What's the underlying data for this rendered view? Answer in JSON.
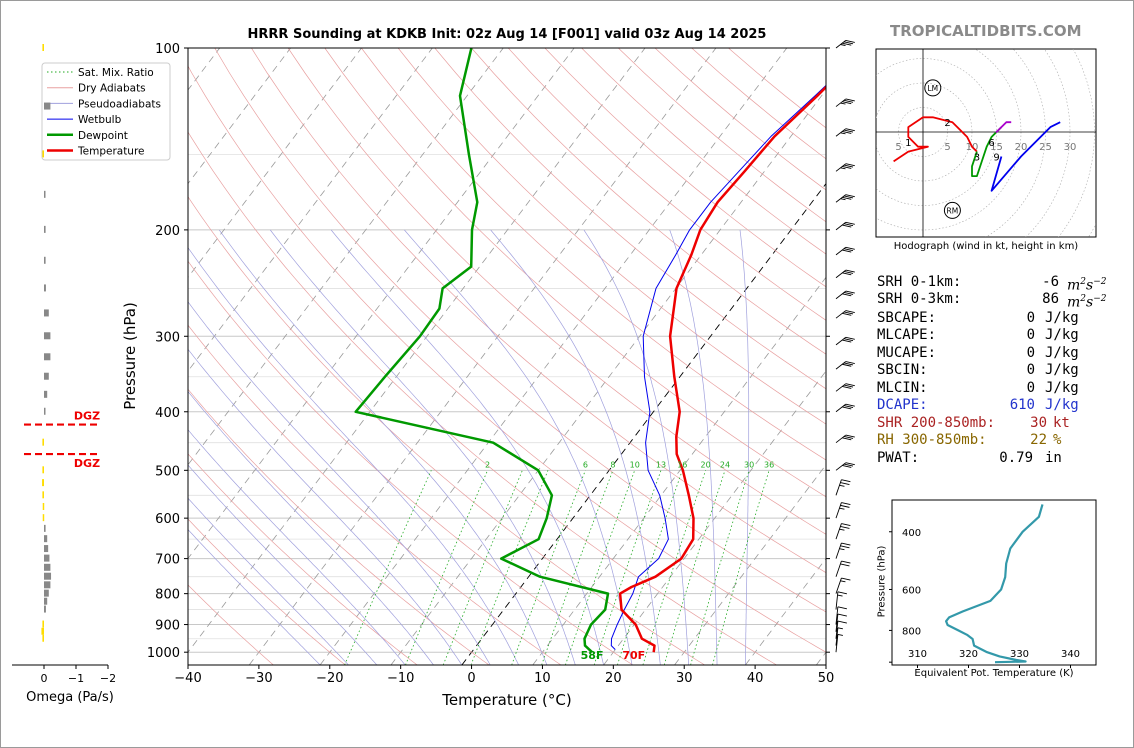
{
  "brand": "TROPICALTIDBITS.COM",
  "chart_data": [
    {
      "type": "line",
      "subtype": "skew-t",
      "title": "HRRR Sounding at KDKB Init: 02z Aug 14 [F001] valid 03z Aug 14 2025",
      "xlabel": "Temperature (°C)",
      "ylabel": "Pressure (hPa)",
      "xlim": [
        -40,
        50
      ],
      "ylim": [
        1050,
        100
      ],
      "y_scale": "log",
      "x_ticks": [
        "−40",
        "−30",
        "−20",
        "−10",
        "0",
        "10",
        "20",
        "30",
        "40",
        "50"
      ],
      "y_ticks": [
        "100",
        "200",
        "300",
        "400",
        "500",
        "600",
        "700",
        "800",
        "900",
        "1000"
      ],
      "y_tick_values": [
        100,
        200,
        300,
        400,
        500,
        600,
        700,
        800,
        900,
        1000
      ],
      "legend_position": "top-left",
      "legend": [
        "Sat. Mix. Ratio",
        "Dry Adiabats",
        "Pseudoadiabats",
        "Wetbulb",
        "Dewpoint",
        "Temperature"
      ],
      "mixing_ratio_labels": [
        "2",
        "6",
        "8",
        "10",
        "13",
        "16",
        "20",
        "24",
        "30",
        "36"
      ],
      "mixing_ratio_values": [
        2,
        6,
        8,
        10,
        13,
        16,
        20,
        24,
        30,
        36
      ],
      "surface_labels": {
        "dewpoint": "58F",
        "temperature": "70F"
      },
      "series": [
        {
          "name": "Temperature",
          "color": "#ee0000",
          "points": [
            [
              1000,
              25.7
            ],
            [
              975,
              25.1
            ],
            [
              950,
              22.6
            ],
            [
              900,
              20.2
            ],
            [
              850,
              16.6
            ],
            [
              800,
              14.7
            ],
            [
              780,
              15.6
            ],
            [
              750,
              17.9
            ],
            [
              700,
              19.6
            ],
            [
              650,
              19.2
            ],
            [
              600,
              17.0
            ],
            [
              550,
              13.9
            ],
            [
              500,
              10.4
            ],
            [
              470,
              7.8
            ],
            [
              440,
              5.9
            ],
            [
              400,
              3.7
            ],
            [
              350,
              -0.8
            ],
            [
              300,
              -5.7
            ],
            [
              250,
              -9.9
            ],
            [
              220,
              -11.4
            ],
            [
              200,
              -12.8
            ],
            [
              180,
              -13.3
            ],
            [
              160,
              -12.8
            ],
            [
              140,
              -12.3
            ],
            [
              120,
              -10.6
            ],
            [
              100,
              -8.9
            ]
          ]
        },
        {
          "name": "Dewpoint",
          "color": "#009900",
          "points": [
            [
              1000,
              17.0
            ],
            [
              975,
              15.3
            ],
            [
              950,
              14.5
            ],
            [
              900,
              13.9
            ],
            [
              850,
              14.3
            ],
            [
              800,
              13.0
            ],
            [
              750,
              1.6
            ],
            [
              700,
              -5.8
            ],
            [
              650,
              -2.6
            ],
            [
              600,
              -3.7
            ],
            [
              550,
              -5.4
            ],
            [
              500,
              -10.0
            ],
            [
              450,
              -19.3
            ],
            [
              400,
              -42.0
            ],
            [
              350,
              -41.6
            ],
            [
              300,
              -41.0
            ],
            [
              270,
              -41.2
            ],
            [
              250,
              -42.9
            ],
            [
              230,
              -41.2
            ],
            [
              200,
              -45.0
            ],
            [
              180,
              -47.2
            ],
            [
              150,
              -53.5
            ],
            [
              120,
              -61.0
            ],
            [
              100,
              -64.5
            ]
          ]
        },
        {
          "name": "Wetbulb",
          "color": "#0000ee",
          "points": [
            [
              990,
              20.0
            ],
            [
              975,
              19.0
            ],
            [
              950,
              18.3
            ],
            [
              900,
              17.6
            ],
            [
              850,
              17.0
            ],
            [
              800,
              16.5
            ],
            [
              750,
              15.5
            ],
            [
              700,
              16.4
            ],
            [
              650,
              15.7
            ],
            [
              600,
              13.0
            ],
            [
              550,
              9.8
            ],
            [
              500,
              5.5
            ],
            [
              450,
              2.2
            ],
            [
              400,
              -0.5
            ],
            [
              350,
              -5.0
            ],
            [
              300,
              -9.5
            ],
            [
              250,
              -12.8
            ],
            [
              220,
              -13.6
            ],
            [
              200,
              -14.3
            ],
            [
              180,
              -14.3
            ],
            [
              160,
              -13.6
            ],
            [
              140,
              -12.8
            ],
            [
              120,
              -10.9
            ],
            [
              100,
              -8.9
            ]
          ]
        }
      ],
      "wind_barbs_kt": [
        [
          1000,
          5
        ],
        [
          975,
          5
        ],
        [
          950,
          10
        ],
        [
          925,
          10
        ],
        [
          900,
          10
        ],
        [
          850,
          15
        ],
        [
          800,
          15
        ],
        [
          750,
          20
        ],
        [
          700,
          25
        ],
        [
          650,
          25
        ],
        [
          600,
          25
        ],
        [
          550,
          25
        ],
        [
          500,
          30
        ],
        [
          450,
          30
        ],
        [
          400,
          30
        ],
        [
          370,
          30
        ],
        [
          340,
          30
        ],
        [
          310,
          30
        ],
        [
          280,
          30
        ],
        [
          260,
          30
        ],
        [
          240,
          30
        ],
        [
          220,
          30
        ],
        [
          200,
          30
        ],
        [
          180,
          35
        ],
        [
          160,
          35
        ],
        [
          140,
          35
        ],
        [
          125,
          35
        ],
        [
          100,
          35
        ]
      ]
    },
    {
      "type": "bar",
      "subtype": "omega-profile",
      "xlabel": "Omega (Pa/s)",
      "xlim": [
        1,
        -2
      ],
      "x_ticks": [
        "0",
        "−1",
        "−2"
      ],
      "dgz_label": "DGZ",
      "dgz_pressures_hpa": [
        420,
        470
      ],
      "bars": [
        {
          "p": 100,
          "v": 0.05
        },
        {
          "p": 125,
          "v": -0.2
        },
        {
          "p": 150,
          "v": 0.05
        },
        {
          "p": 175,
          "v": -0.02
        },
        {
          "p": 200,
          "v": -0.05
        },
        {
          "p": 225,
          "v": -0.05
        },
        {
          "p": 250,
          "v": -0.06
        },
        {
          "p": 275,
          "v": -0.15
        },
        {
          "p": 300,
          "v": -0.2
        },
        {
          "p": 325,
          "v": -0.2
        },
        {
          "p": 350,
          "v": -0.15
        },
        {
          "p": 375,
          "v": -0.1
        },
        {
          "p": 400,
          "v": -0.03
        },
        {
          "p": 450,
          "v": 0.05
        },
        {
          "p": 500,
          "v": 0.05
        },
        {
          "p": 525,
          "v": 0.06
        },
        {
          "p": 550,
          "v": 0.05
        },
        {
          "p": 575,
          "v": 0.04
        },
        {
          "p": 600,
          "v": 0.04
        },
        {
          "p": 625,
          "v": -0.05
        },
        {
          "p": 650,
          "v": -0.1
        },
        {
          "p": 675,
          "v": -0.13
        },
        {
          "p": 700,
          "v": -0.17
        },
        {
          "p": 725,
          "v": -0.2
        },
        {
          "p": 750,
          "v": -0.22
        },
        {
          "p": 775,
          "v": -0.2
        },
        {
          "p": 800,
          "v": -0.15
        },
        {
          "p": 825,
          "v": -0.1
        },
        {
          "p": 850,
          "v": -0.06
        },
        {
          "p": 900,
          "v": 0.05
        },
        {
          "p": 925,
          "v": 0.08
        },
        {
          "p": 950,
          "v": 0.05
        }
      ]
    },
    {
      "type": "line",
      "subtype": "hodograph",
      "xlabel": "Hodograph (wind in kt, height in km)",
      "ring_labels": [
        "5",
        "5",
        "10",
        "15",
        "20",
        "25",
        "30"
      ],
      "ring_label_values": [
        -5,
        5,
        10,
        15,
        20,
        25,
        30
      ],
      "storm_motion_labels": {
        "left": "LM",
        "right": "RM"
      },
      "storm_motion_kt": {
        "left": [
          2,
          9
        ],
        "right": [
          6,
          -16
        ]
      },
      "height_labels_km": [
        "1",
        "2",
        "3",
        "6",
        "9"
      ],
      "height_label_positions_kt": [
        [
          -3,
          -2
        ],
        [
          5,
          2
        ],
        [
          11,
          -5
        ],
        [
          14,
          -2
        ],
        [
          15,
          -5
        ]
      ],
      "segments": [
        {
          "name": "0-3 km",
          "color": "#ee0000",
          "points": [
            [
              -6,
              -6
            ],
            [
              -3,
              -4
            ],
            [
              1,
              -3
            ],
            [
              -1,
              -3
            ],
            [
              -3,
              -1
            ],
            [
              -3,
              1
            ],
            [
              0,
              3
            ],
            [
              2,
              3
            ],
            [
              6,
              2
            ],
            [
              9,
              -1
            ],
            [
              10,
              -3
            ],
            [
              11,
              -4
            ]
          ]
        },
        {
          "name": "3-6 km",
          "color": "#009900",
          "points": [
            [
              11,
              -4
            ],
            [
              10,
              -7
            ],
            [
              10,
              -9
            ],
            [
              11,
              -9
            ],
            [
              12,
              -6
            ],
            [
              13,
              -3
            ],
            [
              14,
              -1
            ],
            [
              16,
              1
            ]
          ]
        },
        {
          "name": "6-9 km",
          "color": "#aa00cc",
          "points": [
            [
              16,
              1
            ],
            [
              15,
              0
            ],
            [
              17,
              2
            ],
            [
              18,
              2
            ]
          ]
        },
        {
          "name": "9-12 km",
          "color": "#0000ee",
          "points": [
            [
              16,
              -5
            ],
            [
              14,
              -12
            ],
            [
              20,
              -5
            ],
            [
              26,
              1
            ],
            [
              28,
              2
            ]
          ]
        }
      ]
    },
    {
      "type": "line",
      "subtype": "theta-e-profile",
      "xlabel": "Equivalent Pot. Temperature (K)",
      "ylabel": "Pressure (hPa)",
      "xlim": [
        305,
        345
      ],
      "ylim": [
        1020,
        320
      ],
      "x_ticks": [
        "310",
        "320",
        "330",
        "340"
      ],
      "x_tick_values": [
        310,
        320,
        330,
        340
      ],
      "y_ticks": [
        "400",
        "600",
        "800"
      ],
      "y_tick_values": [
        400,
        600,
        800
      ],
      "color": "#3399aa",
      "points": [
        [
          1000,
          325.2
        ],
        [
          995,
          331.2
        ],
        [
          985,
          329.4
        ],
        [
          960,
          326.1
        ],
        [
          930,
          323.5
        ],
        [
          890,
          321.1
        ],
        [
          850,
          320.8
        ],
        [
          825,
          319.7
        ],
        [
          800,
          318.0
        ],
        [
          770,
          315.9
        ],
        [
          750,
          315.6
        ],
        [
          730,
          316.2
        ],
        [
          700,
          318.9
        ],
        [
          650,
          324.3
        ],
        [
          600,
          326.4
        ],
        [
          550,
          327.2
        ],
        [
          500,
          327.4
        ],
        [
          450,
          328.2
        ],
        [
          400,
          330.6
        ],
        [
          360,
          333.8
        ],
        [
          330,
          334.5
        ]
      ]
    }
  ],
  "stats": [
    {
      "label": "SRH 0-1km:",
      "value": "-6",
      "unit": "m",
      "unit_sup": "2",
      "unit2": "s",
      "unit2_sup": "−2",
      "color": "#000000"
    },
    {
      "label": "SRH 0-3km:",
      "value": "86",
      "unit": "m",
      "unit_sup": "2",
      "unit2": "s",
      "unit2_sup": "−2",
      "color": "#000000"
    },
    {
      "label": "SBCAPE:",
      "value": "0",
      "unit": "J/kg",
      "color": "#000000"
    },
    {
      "label": "MLCAPE:",
      "value": "0",
      "unit": "J/kg",
      "color": "#000000"
    },
    {
      "label": "MUCAPE:",
      "value": "0",
      "unit": "J/kg",
      "color": "#000000"
    },
    {
      "label": "SBCIN:",
      "value": "0",
      "unit": "J/kg",
      "color": "#000000"
    },
    {
      "label": "MLCIN:",
      "value": "0",
      "unit": "J/kg",
      "color": "#000000"
    },
    {
      "label": "DCAPE:",
      "value": "610",
      "unit": "J/kg",
      "color": "#2233cc"
    },
    {
      "label": "SHR 200-850mb:",
      "value": "30",
      "unit": "kt",
      "color": "#aa2222"
    },
    {
      "label": "RH 300-850mb:",
      "value": "22",
      "unit": "%",
      "color": "#886600"
    },
    {
      "label": "PWAT:",
      "value": "0.79",
      "unit": "in",
      "color": "#000000"
    }
  ]
}
